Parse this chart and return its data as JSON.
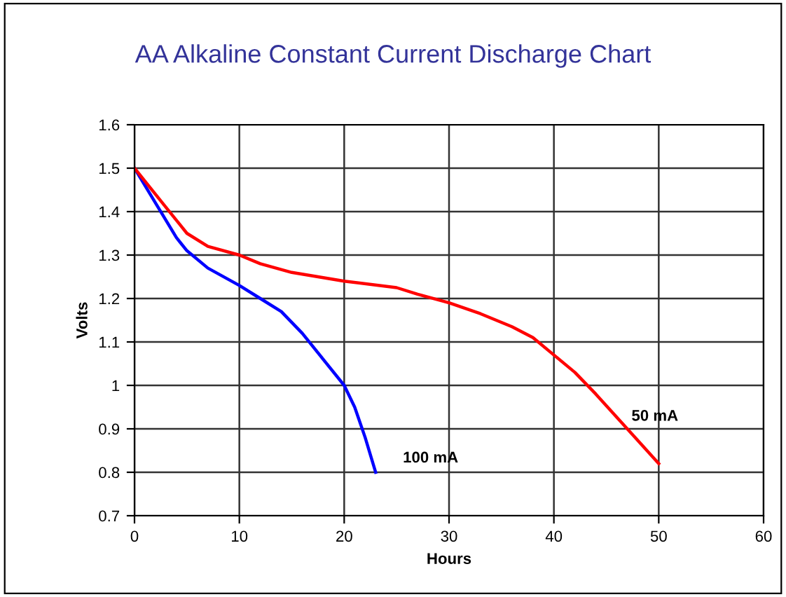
{
  "chart_data": {
    "type": "line",
    "title": "AA Alkaline Constant Current Discharge Chart",
    "xlabel": "Hours",
    "ylabel": "Volts",
    "xlim": [
      0,
      60
    ],
    "xticks": [
      0,
      10,
      20,
      30,
      40,
      50,
      60
    ],
    "ylim": [
      0.7,
      1.6
    ],
    "yticks": [
      {
        "value": 0.7,
        "label": "0.7"
      },
      {
        "value": 0.8,
        "label": "0.8"
      },
      {
        "value": 0.9,
        "label": "0.9"
      },
      {
        "value": 1.0,
        "label": "1"
      },
      {
        "value": 1.1,
        "label": "1.1"
      },
      {
        "value": 1.2,
        "label": "1.2"
      },
      {
        "value": 1.3,
        "label": "1.3"
      },
      {
        "value": 1.4,
        "label": "1.4"
      },
      {
        "value": 1.5,
        "label": "1.5"
      },
      {
        "value": 1.6,
        "label": "1.6"
      }
    ],
    "grid": true,
    "legend": false,
    "marker": "none",
    "line_style": "solid",
    "series": [
      {
        "name": "100 mA",
        "color": "#0000ff",
        "x": [
          0,
          2,
          4,
          5,
          7,
          10,
          12,
          14,
          16,
          18,
          20,
          21,
          22,
          23
        ],
        "values": [
          1.5,
          1.42,
          1.34,
          1.31,
          1.27,
          1.23,
          1.2,
          1.17,
          1.12,
          1.06,
          1.0,
          0.95,
          0.88,
          0.8
        ]
      },
      {
        "name": "50 mA",
        "color": "#ff0000",
        "x": [
          0,
          3,
          5,
          7,
          10,
          12,
          15,
          20,
          25,
          27,
          30,
          33,
          36,
          38,
          40,
          42,
          44,
          47,
          50
        ],
        "values": [
          1.5,
          1.41,
          1.35,
          1.32,
          1.3,
          1.28,
          1.26,
          1.24,
          1.225,
          1.21,
          1.19,
          1.165,
          1.135,
          1.11,
          1.07,
          1.03,
          0.98,
          0.9,
          0.82
        ]
      }
    ]
  }
}
